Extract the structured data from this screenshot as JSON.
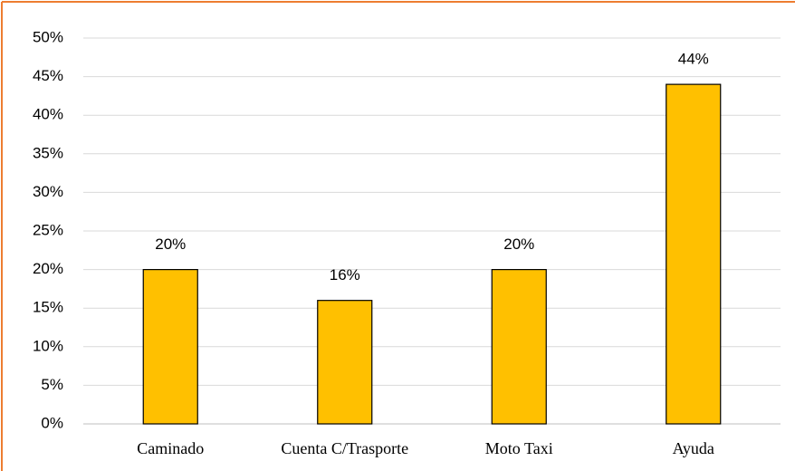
{
  "chart_data": {
    "type": "bar",
    "categories": [
      "Caminado",
      "Cuenta C/Trasporte",
      "Moto Taxi",
      "Ayuda"
    ],
    "values": [
      20,
      16,
      20,
      44
    ],
    "value_labels": [
      "20%",
      "16%",
      "20%",
      "44%"
    ],
    "color": "#ffc000",
    "ylim": [
      0,
      50
    ],
    "yticks": [
      {
        "value": 0,
        "label": "0%"
      },
      {
        "value": 5,
        "label": "5%"
      },
      {
        "value": 10,
        "label": "10%"
      },
      {
        "value": 15,
        "label": "15%"
      },
      {
        "value": 20,
        "label": "20%"
      },
      {
        "value": 25,
        "label": "25%"
      },
      {
        "value": 30,
        "label": "30%"
      },
      {
        "value": 35,
        "label": "35%"
      },
      {
        "value": 40,
        "label": "40%"
      },
      {
        "value": 45,
        "label": "45%"
      },
      {
        "value": 50,
        "label": "50%"
      }
    ],
    "grid": true
  }
}
